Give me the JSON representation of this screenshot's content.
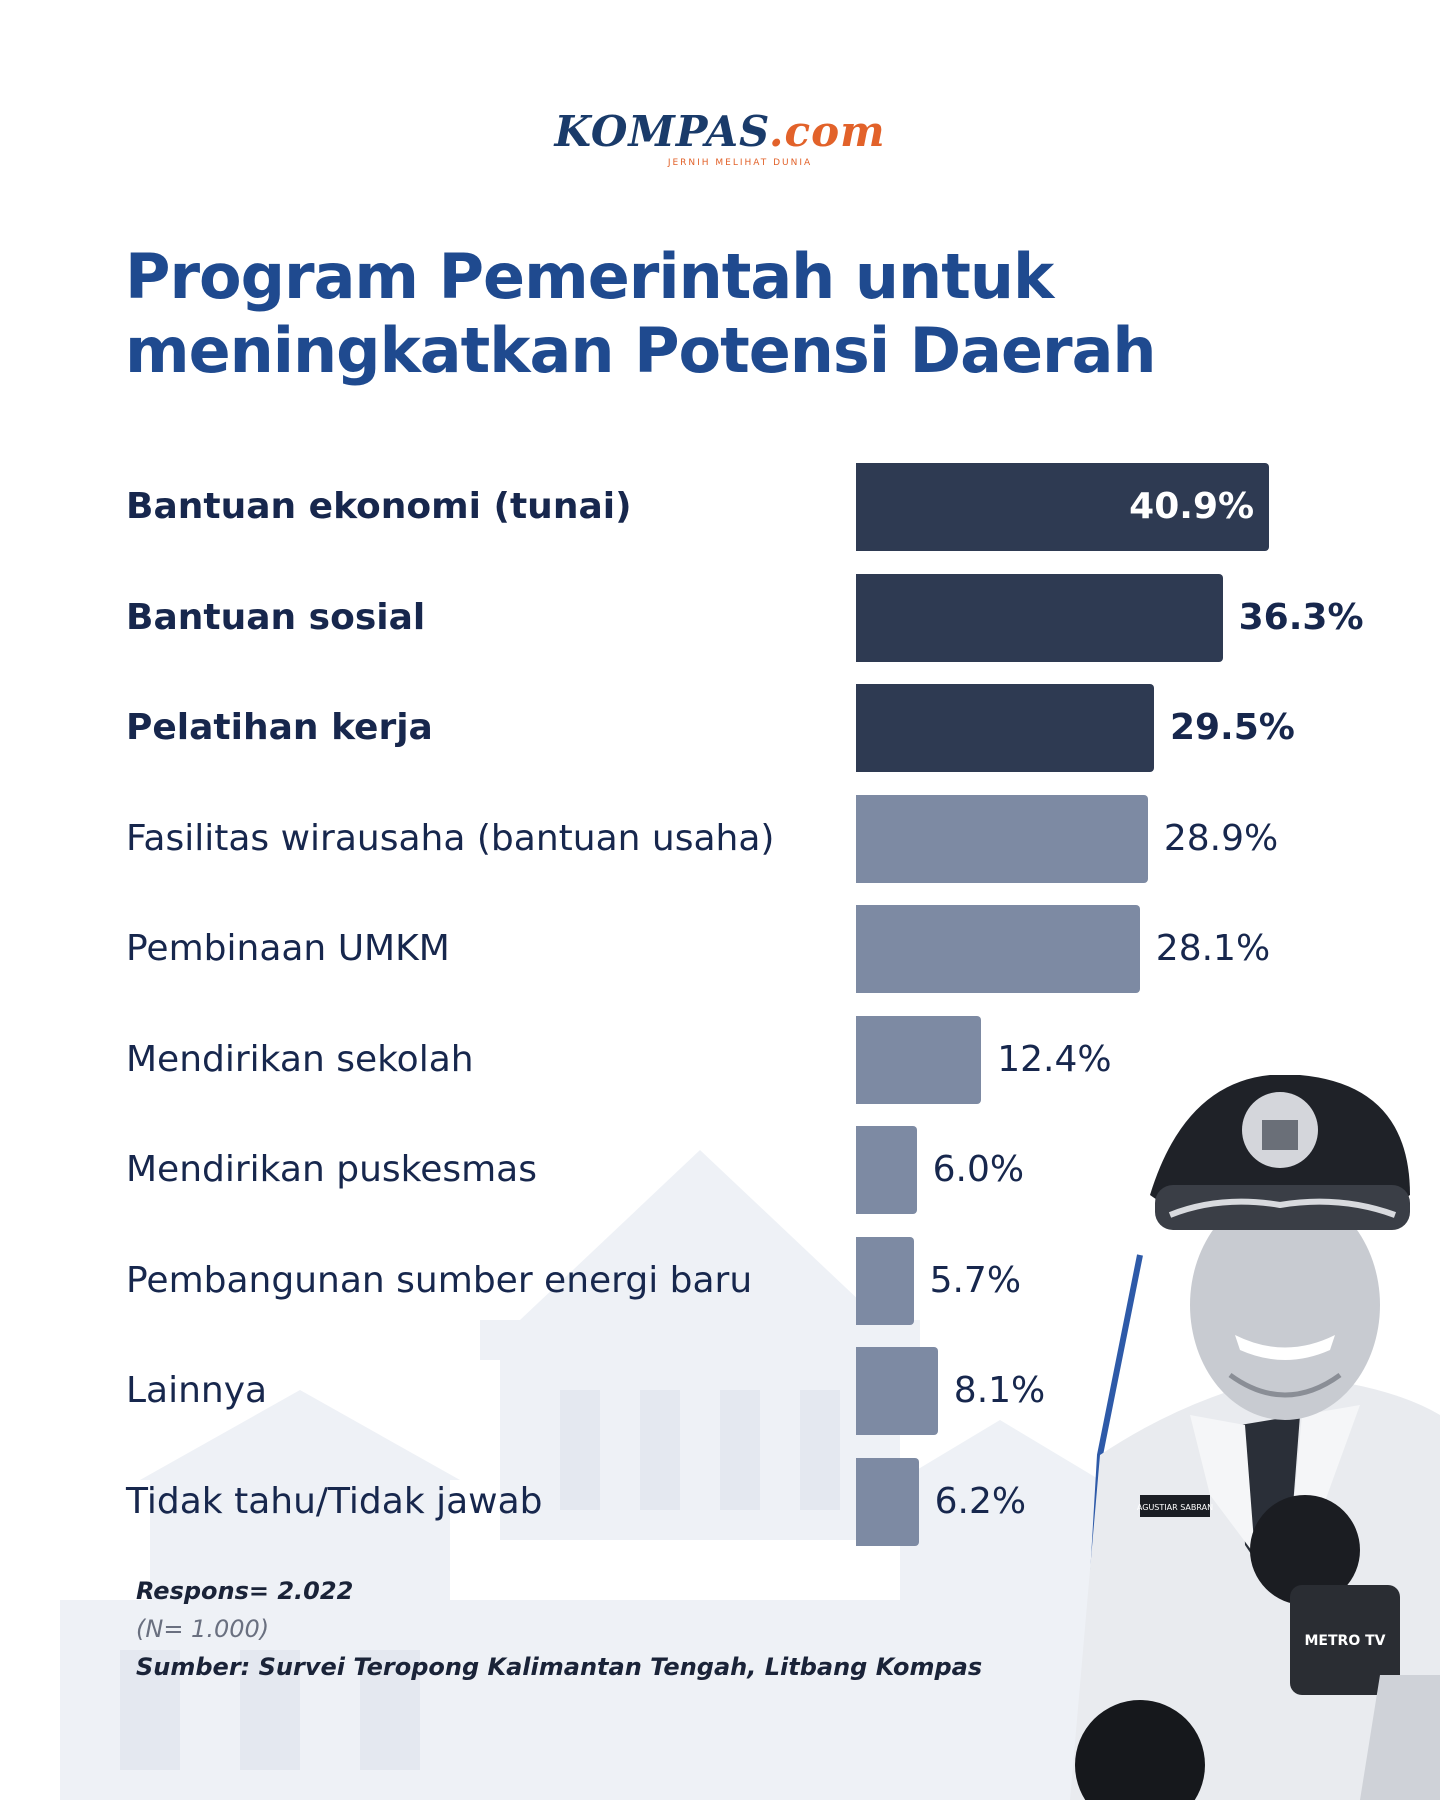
{
  "logo": {
    "brand_main": "KOMPAS",
    "brand_suffix": ".com",
    "tagline": "JERNIH MELIHAT DUNIA"
  },
  "title": {
    "part1": "Program Pemerintah",
    "part2": "untuk",
    "line2": "meningkatkan Potensi Daerah"
  },
  "chart_data": {
    "type": "bar",
    "orientation": "horizontal",
    "title": "Program Pemerintah untuk meningkatkan Potensi Daerah",
    "categories": [
      "Bantuan ekonomi (tunai)",
      "Bantuan sosial",
      "Pelatihan kerja",
      "Fasilitas wirausaha (bantuan usaha)",
      "Pembinaan UMKM",
      "Mendirikan sekolah",
      "Mendirikan puskesmas",
      "Pembangunan sumber energi baru",
      "Lainnya",
      "Tidak tahu/Tidak jawab"
    ],
    "values": [
      40.9,
      36.3,
      29.5,
      28.9,
      28.1,
      12.4,
      6.0,
      5.7,
      8.1,
      6.2
    ],
    "value_labels": [
      "40.9%",
      "36.3%",
      "29.5%",
      "28.9%",
      "28.1%",
      "12.4%",
      "6.0%",
      "5.7%",
      "8.1%",
      "6.2%"
    ],
    "highlight_count": 3,
    "colors": {
      "highlight": "#2e3a52",
      "normal": "#7d8aa3"
    },
    "xlim": [
      0,
      45
    ],
    "grid": false,
    "legend": "none"
  },
  "notes": {
    "responses": "Respons= 2.022",
    "sample": "(N= 1.000)",
    "source": "Sumber: Survei Teropong Kalimantan Tengah, Litbang Kompas"
  },
  "photo": {
    "name_tag": "AGUSTIAR SABRAN",
    "mic_text": "METRO TV"
  }
}
